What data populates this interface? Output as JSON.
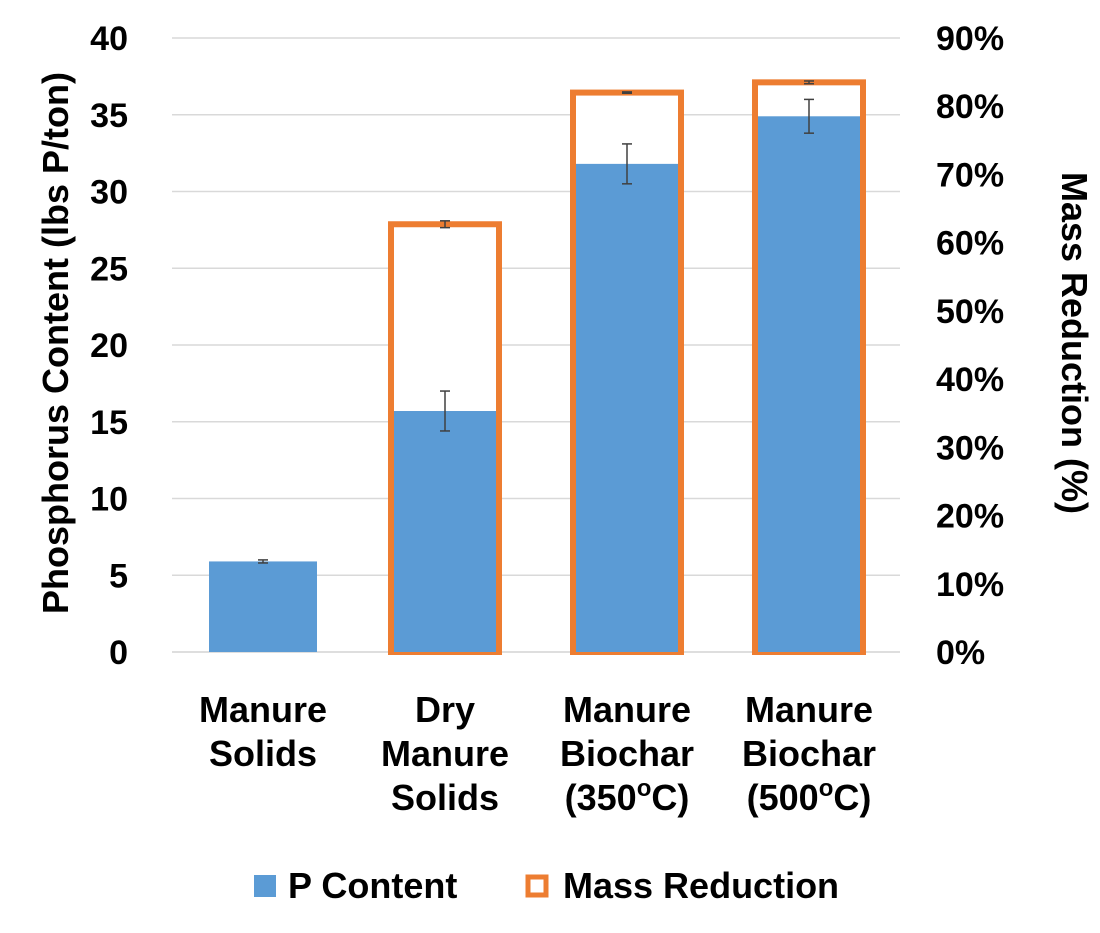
{
  "chart_data": {
    "type": "bar",
    "categories": [
      [
        "Manure",
        "Solids"
      ],
      [
        "Dry",
        "Manure",
        "Solids"
      ],
      [
        "Manure",
        "Biochar",
        "(350oC)"
      ],
      [
        "Manure",
        "Biochar",
        "(500oC)"
      ]
    ],
    "series": [
      {
        "name": "P Content",
        "axis": "left",
        "values": [
          5.9,
          15.7,
          31.8,
          34.9
        ],
        "error": [
          0.1,
          1.3,
          1.3,
          1.1
        ],
        "color": "#5B9BD5"
      },
      {
        "name": "Mass Reduction",
        "axis": "right",
        "values": [
          0,
          62.7,
          82.0,
          83.5
        ],
        "error": [
          0,
          0.5,
          0.1,
          0.2
        ],
        "color": "#ED7D31"
      }
    ],
    "ylabel_left": "Phosphorus Content (lbs P/ton)",
    "ylabel_right": "Mass Reduction (%)",
    "ylim_left": [
      0,
      40
    ],
    "ylim_right": [
      0,
      90
    ],
    "yticks_left": [
      "0",
      "5",
      "10",
      "15",
      "20",
      "25",
      "30",
      "35",
      "40"
    ],
    "yticks_right": [
      "0%",
      "10%",
      "20%",
      "30%",
      "40%",
      "50%",
      "60%",
      "70%",
      "80%",
      "90%"
    ],
    "grid": true,
    "legend_position": "bottom"
  }
}
